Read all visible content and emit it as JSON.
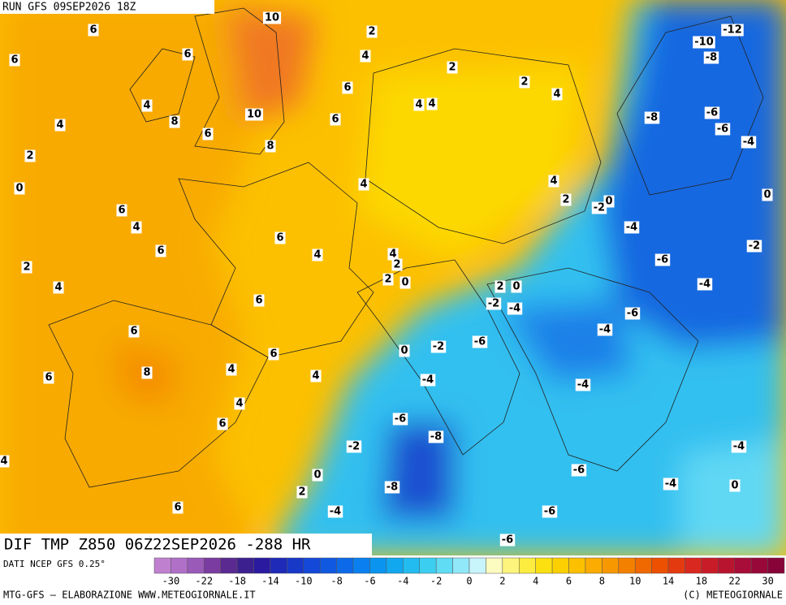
{
  "header": {
    "run": "RUN GFS 09SEP2026 18Z"
  },
  "map": {
    "title": "DIF TMP Z850 06Z22SEP2026 -288 HR",
    "contour_labels": [
      10,
      6,
      6,
      6,
      2,
      4,
      2,
      6,
      2,
      4,
      4,
      8,
      10,
      4,
      4,
      6,
      4,
      6,
      8,
      2,
      0,
      4,
      4,
      2,
      -2,
      0,
      6,
      4,
      6,
      6,
      4,
      4,
      2,
      2,
      2,
      0,
      4,
      6,
      2,
      0,
      -2,
      -4,
      6,
      6,
      0,
      -2,
      -6,
      4,
      4,
      6,
      8,
      -4,
      4,
      6,
      -6,
      -8,
      -2,
      0,
      2,
      -8,
      -4,
      6,
      4,
      -12,
      -10,
      -8,
      -8,
      -6,
      -6,
      -4,
      0,
      -4,
      -2,
      -6,
      -4,
      -6,
      -4,
      -4,
      -4,
      -6,
      -4,
      0,
      -6,
      -6
    ]
  },
  "legend": {
    "source": "DATI NCEP GFS 0.25°",
    "ticks": [
      -30,
      -22,
      -18,
      -14,
      -10,
      -8,
      -6,
      -4,
      -2,
      0,
      2,
      4,
      6,
      8,
      10,
      14,
      18,
      22,
      30
    ],
    "colors": [
      "#c080d0",
      "#b070c8",
      "#9a5ab8",
      "#7a3ca0",
      "#5a2a90",
      "#3c2090",
      "#2a1aa0",
      "#1f2ab8",
      "#1838c8",
      "#1448d8",
      "#1058e0",
      "#0c6ae8",
      "#0a80f0",
      "#0a94f0",
      "#12a8f0",
      "#22bcf0",
      "#3ccef0",
      "#60dcf4",
      "#90e8f8",
      "#c8f4fc",
      "#fcfcc0",
      "#fcf47c",
      "#fcec40",
      "#fce010",
      "#fcd000",
      "#fcc000",
      "#fcac00",
      "#f89800",
      "#f48000",
      "#f06800",
      "#ec5000",
      "#e43a10",
      "#d82820",
      "#c81c28",
      "#b81430",
      "#a80c38",
      "#980838",
      "#880438"
    ]
  },
  "footer": {
    "left": "MTG-GFS — ELABORAZIONE WWW.METEOGIORNALE.IT",
    "right": "(C) METEOGIORNALE"
  }
}
